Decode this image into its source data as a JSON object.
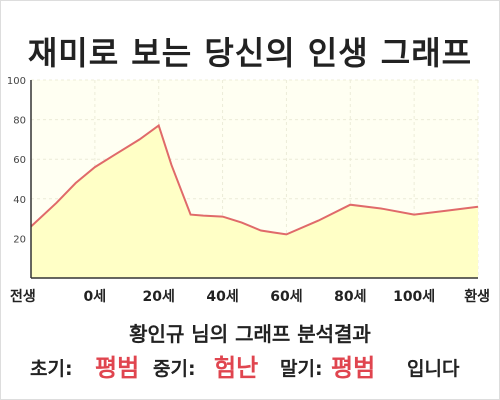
{
  "title": "재미로 보는 당신의 인생 그래프",
  "chart_data": {
    "type": "area",
    "x_labels": [
      "전생",
      "0세",
      "20세",
      "40세",
      "60세",
      "80세",
      "100세",
      "환생"
    ],
    "x": [
      -20,
      0,
      20,
      40,
      60,
      80,
      100,
      120
    ],
    "series": [
      {
        "x": [
          -20,
          -12,
          -6,
          0,
          6,
          14,
          20,
          24,
          30,
          34,
          40,
          46,
          52,
          56,
          60,
          70,
          80,
          90,
          100,
          110,
          120
        ],
        "values": [
          26,
          38,
          48,
          56,
          62,
          70,
          77,
          57,
          32,
          31.5,
          31,
          28,
          24,
          23,
          22,
          29,
          37,
          35,
          32,
          34,
          36
        ]
      }
    ],
    "y_ticks": [
      20,
      40,
      60,
      80,
      100
    ],
    "ylim": [
      0,
      100
    ],
    "grid": true,
    "colors": {
      "line": "#e06a6a",
      "fill": "#ffffc6",
      "plot_bg": "#fffff2",
      "grid": "#ececd8"
    }
  },
  "result": {
    "line1": "황인규 님의 그래프 분석결과",
    "early_label": "초기:",
    "early_value": "평범",
    "mid_label": "중기:",
    "mid_value": "험난",
    "late_label": "말기:",
    "late_value": "평범",
    "ending": "입니다"
  }
}
